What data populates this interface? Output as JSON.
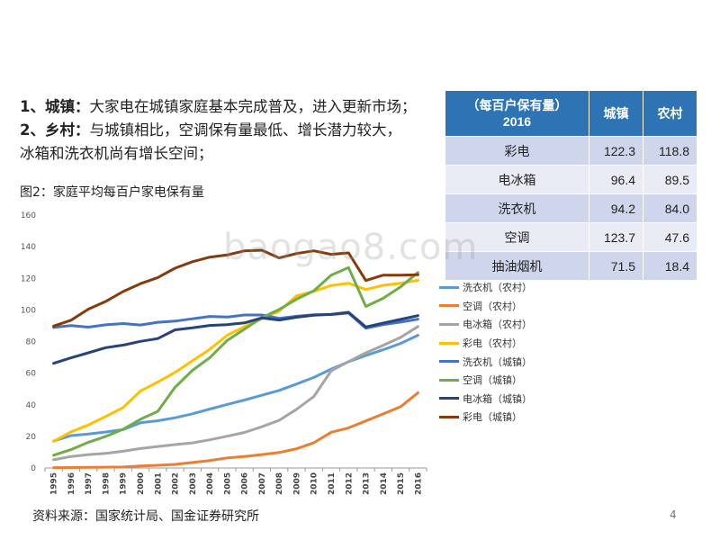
{
  "bullets": [
    {
      "bold": "1、城镇：",
      "lines": [
        "大家电在城镇家庭基本完成普及，进入更新市场；"
      ]
    },
    {
      "bold": "2、乡村：",
      "lines": [
        "与城镇相比，空调保有量最低、增长潜力较大，",
        "冰箱和洗衣机尚有增长空间；"
      ]
    }
  ],
  "figure_title": "图2：家庭平均每百户家电保有量",
  "source": "资料来源：国家统计局、国金证券研究所",
  "page_number": "4",
  "watermark": "baogao8.com",
  "table": {
    "header": [
      "（每百户保有量）2016",
      "城镇",
      "农村"
    ],
    "rows": [
      {
        "item": "彩电",
        "urban": "122.3",
        "rural": "118.8"
      },
      {
        "item": "电冰箱",
        "urban": "96.4",
        "rural": "89.5"
      },
      {
        "item": "洗衣机",
        "urban": "94.2",
        "rural": "84.0"
      },
      {
        "item": "空调",
        "urban": "123.7",
        "rural": "47.6"
      },
      {
        "item": "抽油烟机",
        "urban": "71.5",
        "rural": "18.4"
      }
    ]
  },
  "colors": {
    "header_blue": "#2e74b5",
    "row_dark": "#cfd5ea",
    "row_light": "#e9ebf5"
  },
  "chart_data": {
    "type": "line",
    "ylim": [
      0,
      160
    ],
    "yticks": [
      0,
      20,
      40,
      60,
      80,
      100,
      120,
      140,
      160
    ],
    "grid": false,
    "legend_position": "right",
    "x": [
      "1995",
      "1996",
      "1997",
      "1998",
      "1999",
      "2000",
      "2001",
      "2002",
      "2003",
      "2004",
      "2005",
      "2006",
      "2007",
      "2008",
      "2009",
      "2010",
      "2011",
      "2012",
      "2013",
      "2014",
      "2015",
      "2016"
    ],
    "series": [
      {
        "name": "洗衣机（农村）",
        "color": "#5b9bd5",
        "values": [
          17,
          20.5,
          21.5,
          22.8,
          24.3,
          28.6,
          29.9,
          31.8,
          34.3,
          37.3,
          40.2,
          43,
          46,
          49.1,
          53.1,
          57.3,
          62.6,
          67.2,
          71.2,
          74.8,
          78.8,
          84
        ]
      },
      {
        "name": "空调（农村）",
        "color": "#ed7d31",
        "values": [
          0.2,
          0.3,
          0.4,
          0.5,
          0.6,
          1.3,
          1.7,
          2.3,
          3.5,
          4.7,
          6.4,
          7.3,
          8.5,
          9.8,
          12.2,
          16,
          22.6,
          25.4,
          29.8,
          34.2,
          38.8,
          47.6
        ]
      },
      {
        "name": "电冰箱（农村）",
        "color": "#a5a5a5",
        "values": [
          5.2,
          7.3,
          8.5,
          9.3,
          10.6,
          12.3,
          13.6,
          14.8,
          15.9,
          17.8,
          20.1,
          22.5,
          26.1,
          30.2,
          37.1,
          45.2,
          61.5,
          67.3,
          72.9,
          77.6,
          82.6,
          89.5
        ]
      },
      {
        "name": "彩电（农村）",
        "color": "#ffc000",
        "values": [
          16.9,
          22.9,
          27.3,
          32.6,
          38.2,
          48.7,
          54.4,
          60.5,
          67.8,
          75.1,
          84,
          89.4,
          94.4,
          99.2,
          108.9,
          111.8,
          115.5,
          116.9,
          112.9,
          115.6,
          116.9,
          118.8
        ]
      },
      {
        "name": "洗衣机（城镇）",
        "color": "#4472c4",
        "values": [
          89,
          90.1,
          89.1,
          90.6,
          91.4,
          90.5,
          92.2,
          92.9,
          94.4,
          95.9,
          95.5,
          96.8,
          96.8,
          94.7,
          96,
          96.9,
          97.1,
          98,
          88.4,
          90.7,
          92.3,
          94.2
        ]
      },
      {
        "name": "空调（城镇）",
        "color": "#70ad47",
        "values": [
          8.1,
          11.6,
          16.3,
          20,
          24.5,
          30.8,
          35.8,
          51.1,
          61.8,
          69.8,
          80.7,
          87.8,
          95.1,
          100.3,
          106.8,
          112.1,
          122,
          126.8,
          102.2,
          107.4,
          114.6,
          123.7
        ]
      },
      {
        "name": "电冰箱（城镇）",
        "color": "#264478",
        "values": [
          66.2,
          69.7,
          72.9,
          76.1,
          77.7,
          80.1,
          81.9,
          87.4,
          88.7,
          90.2,
          90.7,
          91.8,
          95,
          93.6,
          95.4,
          96.6,
          97.2,
          98.5,
          89.2,
          91.7,
          94,
          96.4
        ]
      },
      {
        "name": "彩电（城镇）",
        "color": "#843c0c",
        "values": [
          89.8,
          93.5,
          100.5,
          105.4,
          111.6,
          116.6,
          120.5,
          126.4,
          130.5,
          133.4,
          134.8,
          137.4,
          137.8,
          132.9,
          135.7,
          137.4,
          135.2,
          136.1,
          118.6,
          122,
          122,
          122.3
        ]
      }
    ]
  }
}
